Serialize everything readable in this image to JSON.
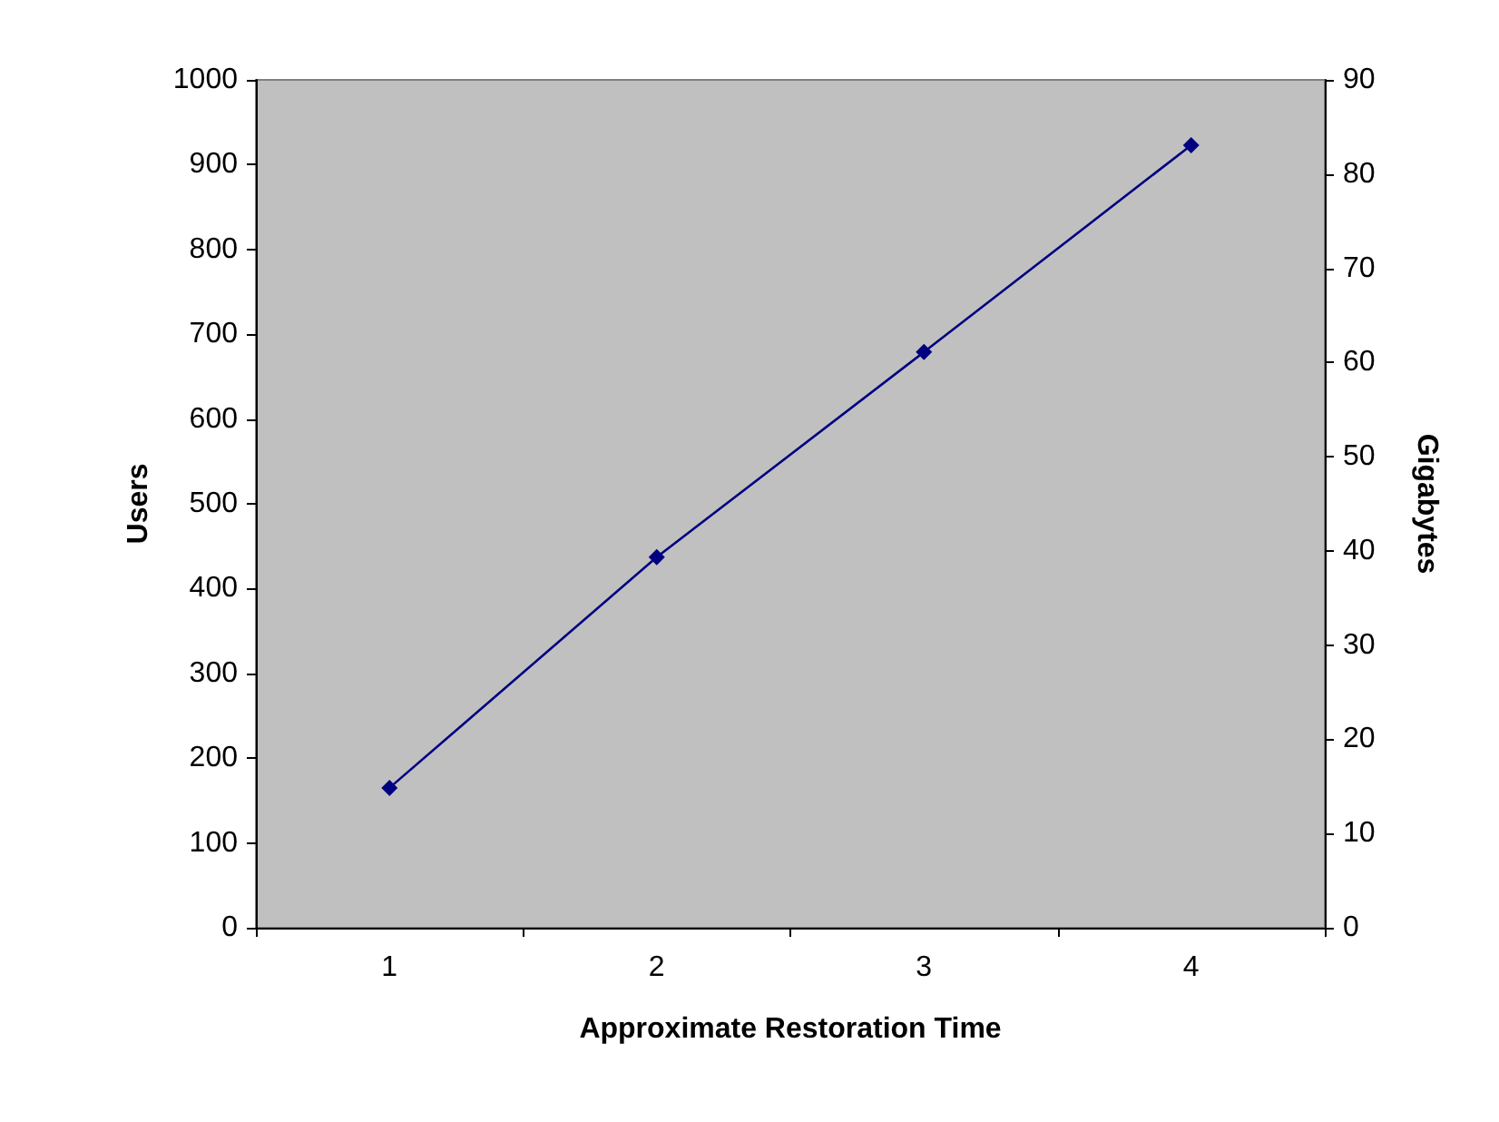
{
  "chart_data": {
    "type": "line",
    "xlabel": "Approximate Restoration Time",
    "ylabel": "Users",
    "y2label": "Gigabytes",
    "categories": [
      "1",
      "2",
      "3",
      "4"
    ],
    "series": [
      {
        "color": "#000080",
        "values": [
          165,
          437,
          679,
          923
        ]
      }
    ],
    "ylim": [
      0,
      1000
    ],
    "yticks": [
      0,
      100,
      200,
      300,
      400,
      500,
      600,
      700,
      800,
      900,
      1000
    ],
    "y2lim": [
      0,
      90
    ],
    "y2ticks": [
      0,
      10,
      20,
      30,
      40,
      50,
      60,
      70,
      80,
      90
    ],
    "marker": "diamond",
    "line_style": "solid",
    "grid": false
  }
}
